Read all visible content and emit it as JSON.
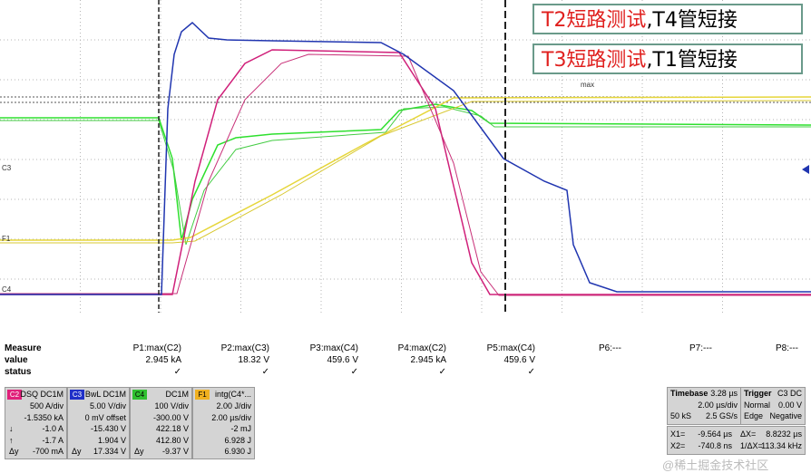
{
  "annotations": [
    "T2短路测试,T4管短接",
    "T3短路测试,T1管短接"
  ],
  "channel_markers": [
    "C3",
    "F1",
    "C4"
  ],
  "max_label": "max",
  "measure": {
    "headers": [
      "Measure",
      "value",
      "status"
    ],
    "columns": [
      {
        "label": "P1:max(C2)",
        "value": "2.945 kA",
        "status": "✓"
      },
      {
        "label": "P2:max(C3)",
        "value": "18.32 V",
        "status": "✓"
      },
      {
        "label": "P3:max(C4)",
        "value": "459.6 V",
        "status": "✓"
      },
      {
        "label": "P4:max(C2)",
        "value": "2.945 kA",
        "status": "✓"
      },
      {
        "label": "P5:max(C4)",
        "value": "459.6 V",
        "status": "✓"
      },
      {
        "label": "P6:---"
      },
      {
        "label": "P7:---"
      },
      {
        "label": "P8:---"
      }
    ]
  },
  "channels": [
    {
      "badge": "C2",
      "header": "DSQ DC1M",
      "rows": [
        {
          "value": "500 A/div"
        },
        {
          "value": "-1.5350 kA"
        },
        {
          "label": "↓",
          "value": "-1.0 A"
        },
        {
          "label": "↑",
          "value": "-1.7 A"
        },
        {
          "label": "Δy",
          "value": "-700 mA"
        }
      ]
    },
    {
      "badge": "C3",
      "header": "BwL DC1M",
      "rows": [
        {
          "value": "5.00 V/div"
        },
        {
          "value": "0 mV offset"
        },
        {
          "value": "-15.430 V"
        },
        {
          "value": "1.904 V"
        },
        {
          "label": "Δy",
          "value": "17.334 V"
        }
      ]
    },
    {
      "badge": "C4",
      "header": "DC1M",
      "rows": [
        {
          "value": "100 V/div"
        },
        {
          "value": "-300.00 V"
        },
        {
          "value": "422.18 V"
        },
        {
          "value": "412.80 V"
        },
        {
          "label": "Δy",
          "value": "-9.37 V"
        }
      ]
    },
    {
      "badge": "F1",
      "header": "intg(C4*...",
      "rows": [
        {
          "value": "2.00 J/div"
        },
        {
          "value": "2.00 µs/div"
        },
        {
          "value": "-2 mJ"
        },
        {
          "value": "6.928 J"
        },
        {
          "value": "6.930 J"
        }
      ]
    }
  ],
  "timebase": {
    "title": "Timebase",
    "offset": "3.28 µs",
    "rows": [
      [
        "2.00 µs/div"
      ],
      [
        "50 kS",
        "2.5 GS/s"
      ]
    ]
  },
  "trigger": {
    "title": "Trigger",
    "source": "C3 DC",
    "rows": [
      [
        "Normal",
        "0.00 V"
      ],
      [
        "Edge",
        "Negative"
      ]
    ]
  },
  "cursors": [
    [
      "X1=",
      "-9.564 µs",
      "ΔX=",
      "8.8232 µs"
    ],
    [
      "X2=",
      "-740.8 ns",
      "1/ΔX=",
      "113.34 kHz"
    ]
  ],
  "watermark": "@稀土掘金技术社区"
}
